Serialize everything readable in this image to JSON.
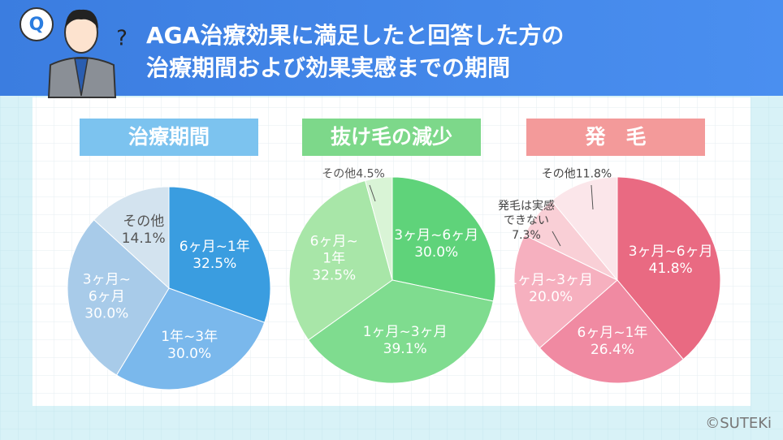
{
  "title_lines": [
    "AGA治療効果に満足したと回答した方の",
    "治療期間および効果実感までの期間"
  ],
  "icon_q": "Q",
  "icon_question": "?",
  "copyright": "©SUTEKi",
  "chart_data": [
    {
      "type": "pie",
      "title": "治療期間",
      "title_color": "#7cc3ef",
      "categories": [
        "6ヶ月~1年",
        "1年~3年",
        "3ヶ月~\n6ヶ月",
        "その他"
      ],
      "values": [
        32.5,
        30.0,
        30.0,
        14.1
      ],
      "value_labels": [
        "32.5%",
        "30.0%",
        "30.0%",
        "14.1%"
      ],
      "colors": [
        "#3a9de0",
        "#7ab8ec",
        "#a8cbe9",
        "#d3e3ef"
      ]
    },
    {
      "type": "pie",
      "title": "抜け毛の減少",
      "title_color": "#7dd88a",
      "categories": [
        "3ヶ月~6ヶ月",
        "1ヶ月~3ヶ月",
        "6ヶ月~\n1年",
        "その他"
      ],
      "values": [
        30.0,
        39.1,
        32.5,
        4.5
      ],
      "value_labels": [
        "30.0%",
        "39.1%",
        "32.5%",
        "4.5%"
      ],
      "colors": [
        "#5fd37a",
        "#7fdc8f",
        "#a8e6a8",
        "#d9f4d6"
      ]
    },
    {
      "type": "pie",
      "title": "発　毛",
      "title_color": "#f39a9a",
      "categories": [
        "3ヶ月~6ヶ月",
        "6ヶ月~1年",
        "1ヶ月~3ヶ月",
        "発毛は実感\nできない",
        "その他"
      ],
      "values": [
        41.8,
        26.4,
        20.0,
        7.3,
        11.8
      ],
      "value_labels": [
        "41.8%",
        "26.4%",
        "20.0%",
        "7.3%",
        "11.8%"
      ],
      "colors": [
        "#e96a82",
        "#f08aa2",
        "#f6b0bf",
        "#f9cfd6",
        "#fbe6ea"
      ]
    }
  ]
}
